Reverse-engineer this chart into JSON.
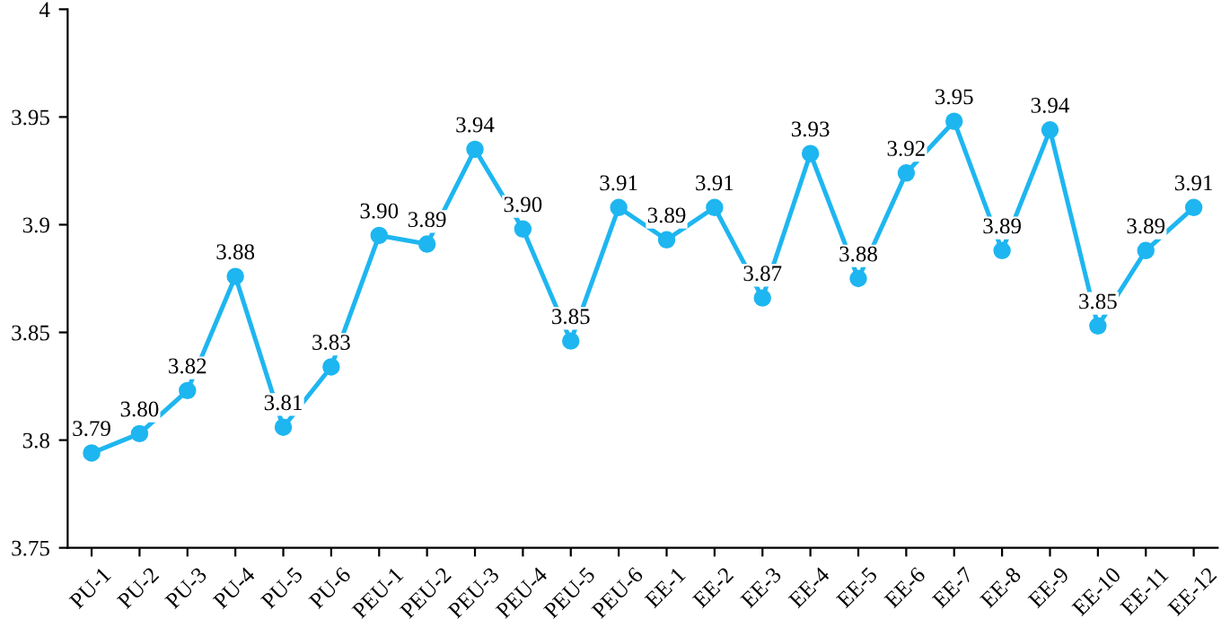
{
  "chart_data": {
    "type": "line",
    "categories": [
      "PU-1",
      "PU-2",
      "PU-3",
      "PU-4",
      "PU-5",
      "PU-6",
      "PEU-1",
      "PEU-2",
      "PEU-3",
      "PEU-4",
      "PEU-5",
      "PEU-6",
      "EE-1",
      "EE-2",
      "EE-3",
      "EE-4",
      "EE-5",
      "EE-6",
      "EE-7",
      "EE-8",
      "EE-9",
      "EE-10",
      "EE-11",
      "EE-12"
    ],
    "values": [
      3.794,
      3.803,
      3.823,
      3.876,
      3.806,
      3.834,
      3.895,
      3.891,
      3.935,
      3.898,
      3.846,
      3.908,
      3.893,
      3.908,
      3.866,
      3.933,
      3.875,
      3.924,
      3.948,
      3.888,
      3.944,
      3.853,
      3.888,
      3.908
    ],
    "value_labels": [
      "3.79",
      "3.80",
      "3.82",
      "3.88",
      "3.81",
      "3.83",
      "3.90",
      "3.89",
      "3.94",
      "3.90",
      "3.85",
      "3.91",
      "3.89",
      "3.91",
      "3.87",
      "3.93",
      "3.88",
      "3.92",
      "3.95",
      "3.89",
      "3.94",
      "3.85",
      "3.89",
      "3.91"
    ],
    "color": "#1eb6f0",
    "ylim": [
      3.75,
      4
    ],
    "yticks": [
      3.75,
      3.8,
      3.85,
      3.9,
      3.95,
      4
    ],
    "marker": "circle",
    "line_style": "solid",
    "grid": false,
    "legend": false
  }
}
